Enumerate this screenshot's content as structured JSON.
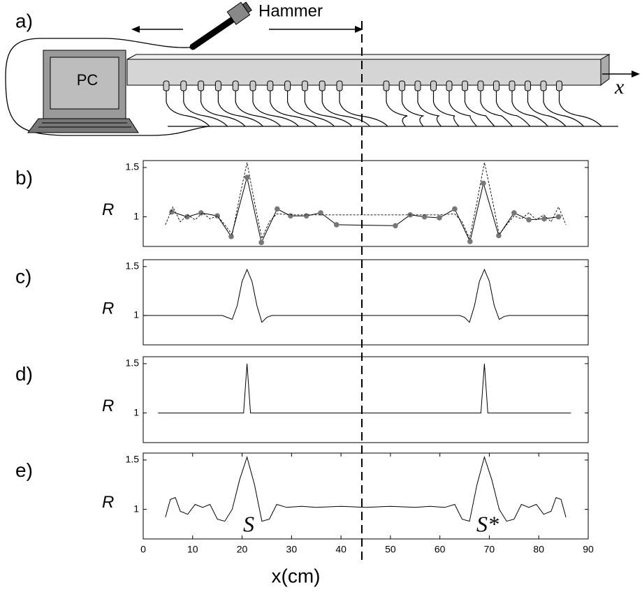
{
  "diagram": {
    "panel_label": "a)",
    "pc": "PC",
    "hammer": "Hammer",
    "axis_label": "x"
  },
  "chart_data": [
    {
      "type": "line",
      "panel_label": "b)",
      "ylabel": "R",
      "xlim": [
        0,
        90
      ],
      "ylim": [
        0.7,
        1.57
      ],
      "yticks": [
        1,
        1.5
      ],
      "series": [
        {
          "style": "solid",
          "markers": true,
          "color": "#000",
          "marker_color": "#777",
          "x": [
            5.8,
            8.9,
            11.7,
            15,
            17.8,
            21,
            23.9,
            27.1,
            29.8,
            33,
            35.9,
            39.1,
            51,
            54,
            56.9,
            59.9,
            63,
            66.1,
            68.8,
            71.9,
            75,
            78,
            81.1,
            84
          ],
          "values": [
            1.05,
            1.0,
            1.04,
            1.01,
            0.8,
            1.4,
            0.74,
            1.08,
            1.01,
            1.01,
            1.04,
            0.92,
            0.91,
            1.02,
            1.0,
            0.99,
            1.08,
            0.75,
            1.34,
            0.81,
            1.04,
            0.97,
            0.98,
            1.0
          ]
        },
        {
          "style": "dashed",
          "markers": false,
          "color": "#000",
          "x": [
            4.5,
            6,
            7.5,
            9,
            10.5,
            12,
            13.5,
            15,
            16.5,
            18,
            19.5,
            21,
            22.5,
            24,
            25.5,
            27,
            30,
            35,
            40,
            45,
            50,
            55,
            60,
            63,
            64.5,
            66,
            67.5,
            69,
            70.5,
            72,
            73.5,
            75,
            76.5,
            78,
            79.5,
            81,
            82.5,
            84,
            85.5
          ],
          "values": [
            0.92,
            1.1,
            0.95,
            1.02,
            0.97,
            1.04,
            0.98,
            1.01,
            0.92,
            0.82,
            1.2,
            1.55,
            1.15,
            0.78,
            0.95,
            1.03,
            1.02,
            1.02,
            1.02,
            1.02,
            1.02,
            1.02,
            1.02,
            1.03,
            0.95,
            0.78,
            1.15,
            1.55,
            1.2,
            0.82,
            0.92,
            1.01,
            0.98,
            1.04,
            0.97,
            1.02,
            0.95,
            1.1,
            0.92
          ]
        }
      ]
    },
    {
      "type": "line",
      "panel_label": "c)",
      "ylabel": "R",
      "xlim": [
        0,
        90
      ],
      "ylim": [
        0.7,
        1.57
      ],
      "yticks": [
        1,
        1.5
      ],
      "series": [
        {
          "style": "solid",
          "markers": false,
          "color": "#000",
          "x": [
            0,
            16,
            18,
            19,
            20,
            21,
            22,
            23,
            24,
            25,
            26,
            64,
            65,
            66,
            67,
            68,
            69,
            70,
            71,
            72,
            73,
            74,
            90
          ],
          "values": [
            1,
            1,
            0.96,
            1.1,
            1.35,
            1.47,
            1.35,
            1.1,
            0.93,
            0.98,
            1,
            1,
            0.98,
            0.93,
            1.1,
            1.35,
            1.47,
            1.35,
            1.1,
            0.96,
            0.99,
            1,
            1
          ]
        }
      ]
    },
    {
      "type": "line",
      "panel_label": "d)",
      "ylabel": "R",
      "xlim": [
        0,
        90
      ],
      "ylim": [
        0.7,
        1.57
      ],
      "yticks": [
        1,
        1.5
      ],
      "series": [
        {
          "style": "solid",
          "markers": false,
          "color": "#000",
          "x": [
            3,
            20.3,
            21,
            21.7,
            68.3,
            69,
            69.7,
            86.5
          ],
          "values": [
            1,
            1,
            1.5,
            1,
            1,
            1.5,
            1,
            1
          ]
        }
      ]
    },
    {
      "type": "line",
      "panel_label": "e)",
      "ylabel": "R",
      "xlabel": "x(cm)",
      "xlim": [
        0,
        90
      ],
      "ylim": [
        0.7,
        1.57
      ],
      "yticks": [
        1,
        1.5
      ],
      "xticks": [
        0,
        10,
        20,
        30,
        40,
        50,
        60,
        70,
        80,
        90
      ],
      "annotations": [
        "S",
        "S*"
      ],
      "series": [
        {
          "style": "solid",
          "markers": false,
          "color": "#000",
          "x": [
            4.5,
            5.5,
            6.5,
            7.5,
            9,
            10.5,
            12,
            13.5,
            15,
            16.5,
            18,
            19.5,
            21,
            22.5,
            24,
            25.5,
            27,
            29,
            32,
            35,
            40,
            45,
            50,
            55,
            58,
            61,
            63,
            64.5,
            66,
            67.5,
            69,
            70.5,
            72,
            73.5,
            75,
            76.5,
            78,
            79.5,
            81,
            82.5,
            83.5,
            84.5,
            85.5
          ],
          "values": [
            0.92,
            1.1,
            1.12,
            0.98,
            0.95,
            1.05,
            1.02,
            1.05,
            0.9,
            0.88,
            1.0,
            1.3,
            1.53,
            1.25,
            0.88,
            0.9,
            1.05,
            1.02,
            1.03,
            1.02,
            1.03,
            1.02,
            1.03,
            1.02,
            1.03,
            1.02,
            1.05,
            0.9,
            0.88,
            1.25,
            1.53,
            1.3,
            1.0,
            0.88,
            0.9,
            1.05,
            1.02,
            1.05,
            0.95,
            0.98,
            1.12,
            1.1,
            0.92
          ]
        }
      ]
    }
  ]
}
